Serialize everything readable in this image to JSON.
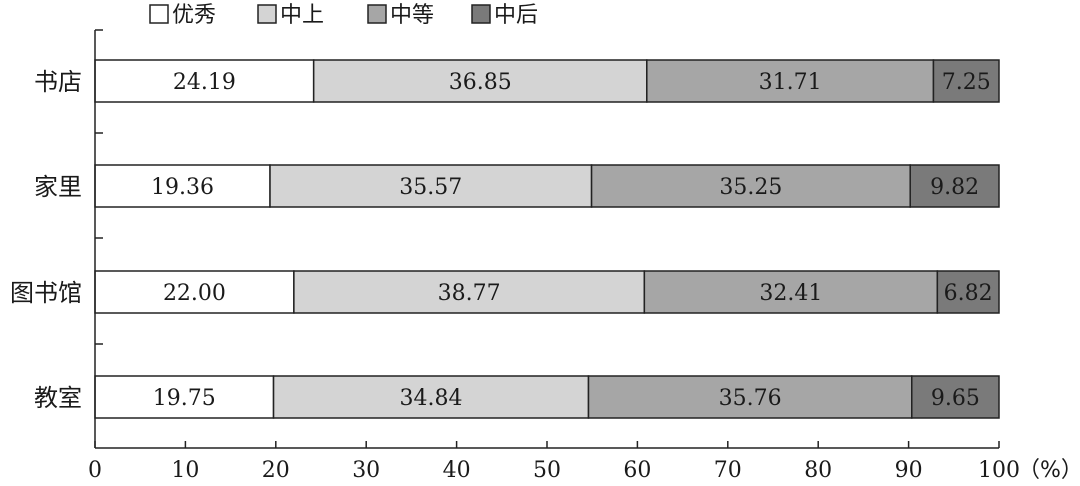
{
  "chart_data": {
    "type": "bar",
    "orientation": "horizontal",
    "stacked": true,
    "categories": [
      "书店",
      "家里",
      "图书馆",
      "教室"
    ],
    "series": [
      {
        "name": "优秀",
        "color": "#ffffff",
        "values": [
          24.19,
          19.36,
          22.0,
          19.75
        ],
        "labels": [
          "24.19",
          "19.36",
          "22.00",
          "19.75"
        ]
      },
      {
        "name": "中上",
        "color": "#d4d4d4",
        "values": [
          36.85,
          35.57,
          38.77,
          34.84
        ],
        "labels": [
          "36.85",
          "35.57",
          "38.77",
          "34.84"
        ]
      },
      {
        "name": "中等",
        "color": "#a6a6a6",
        "values": [
          31.71,
          35.25,
          32.41,
          35.76
        ],
        "labels": [
          "31.71",
          "35.25",
          "32.41",
          "35.76"
        ]
      },
      {
        "name": "中后",
        "color": "#7a7a7a",
        "values": [
          7.25,
          9.82,
          6.82,
          9.65
        ],
        "labels": [
          "7.25",
          "9.82",
          "6.82",
          "9.65"
        ]
      }
    ],
    "xlim": [
      0,
      100
    ],
    "xticks": [
      0,
      10,
      20,
      30,
      40,
      50,
      60,
      70,
      80,
      90,
      100
    ],
    "xtick_labels": [
      "0",
      "10",
      "20",
      "30",
      "40",
      "50",
      "60",
      "70",
      "80",
      "90",
      "100"
    ],
    "unit": "（%）",
    "legend_position": "top-left",
    "grid": false
  }
}
